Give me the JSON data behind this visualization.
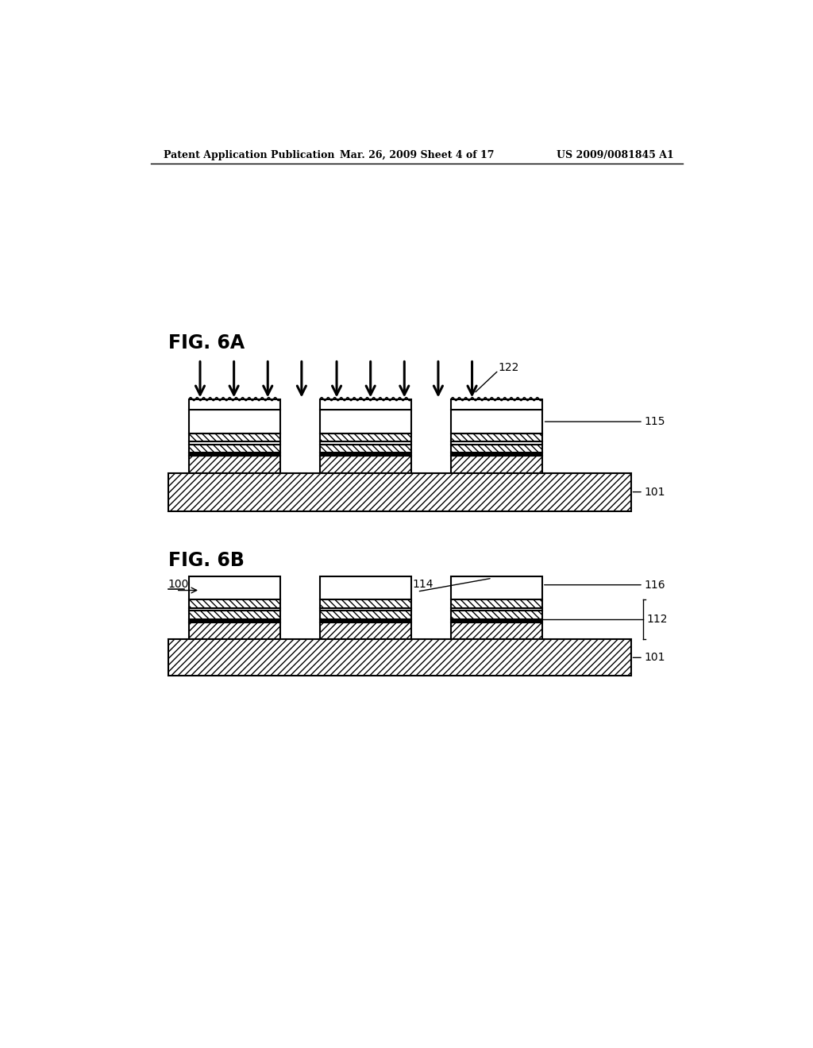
{
  "bg_color": "#ffffff",
  "header_left": "Patent Application Publication",
  "header_center": "Mar. 26, 2009 Sheet 4 of 17",
  "header_right": "US 2009/0081845 A1",
  "fig6a_label": "FIG. 6A",
  "fig6b_label": "FIG. 6B",
  "label_122": "122",
  "label_115": "115",
  "label_101_a": "101",
  "label_100": "100",
  "label_114": "114",
  "label_116": "116",
  "label_112": "112",
  "label_101_b": "101",
  "line_color": "#000000"
}
